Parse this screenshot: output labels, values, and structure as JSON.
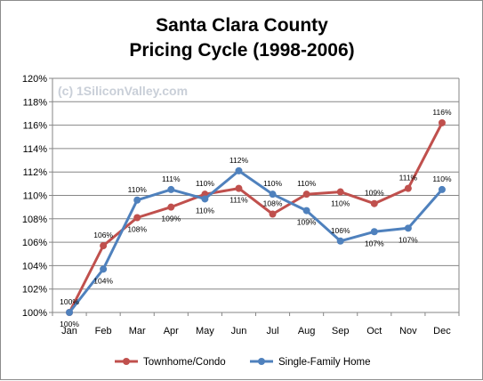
{
  "chart_data": {
    "type": "line",
    "title_lines": [
      "Santa Clara County",
      "Pricing Cycle (1998-2006)"
    ],
    "watermark": "(c) 1SiliconValley.com",
    "categories": [
      "Jan",
      "Feb",
      "Mar",
      "Apr",
      "May",
      "Jun",
      "Jul",
      "Aug",
      "Sep",
      "Oct",
      "Nov",
      "Dec"
    ],
    "ylim": [
      100,
      120
    ],
    "yticks": [
      100,
      102,
      104,
      106,
      108,
      110,
      112,
      114,
      116,
      118,
      120
    ],
    "ytick_labels": [
      "100%",
      "102%",
      "104%",
      "106%",
      "108%",
      "110%",
      "112%",
      "114%",
      "116%",
      "118%",
      "120%"
    ],
    "grid": true,
    "legend_position": "bottom",
    "series": [
      {
        "name": "Townhome/Condo",
        "color": "#c0504d",
        "values": [
          100,
          105.7,
          108.1,
          109,
          110.1,
          110.6,
          108.4,
          110.1,
          110.3,
          109.3,
          110.6,
          116.2
        ],
        "labels": [
          "100%",
          "106%",
          "108%",
          "109%",
          "110%",
          "111%",
          "108%",
          "110%",
          "110%",
          "109%",
          "111%",
          "116%"
        ],
        "label_side": [
          "above",
          "above",
          "below",
          "below",
          "above",
          "below",
          "above",
          "above",
          "below",
          "above",
          "above",
          "above"
        ]
      },
      {
        "name": "Single-Family Home",
        "color": "#4f81bd",
        "values": [
          100,
          103.7,
          109.6,
          110.5,
          109.7,
          112.1,
          110.1,
          108.7,
          106.1,
          106.9,
          107.2,
          110.5
        ],
        "labels": [
          "100%",
          "104%",
          "110%",
          "111%",
          "110%",
          "112%",
          "110%",
          "109%",
          "106%",
          "107%",
          "107%",
          "110%"
        ],
        "label_side": [
          "below",
          "below",
          "above",
          "above",
          "below",
          "above",
          "above",
          "below",
          "above",
          "below",
          "below",
          "above"
        ]
      }
    ]
  }
}
